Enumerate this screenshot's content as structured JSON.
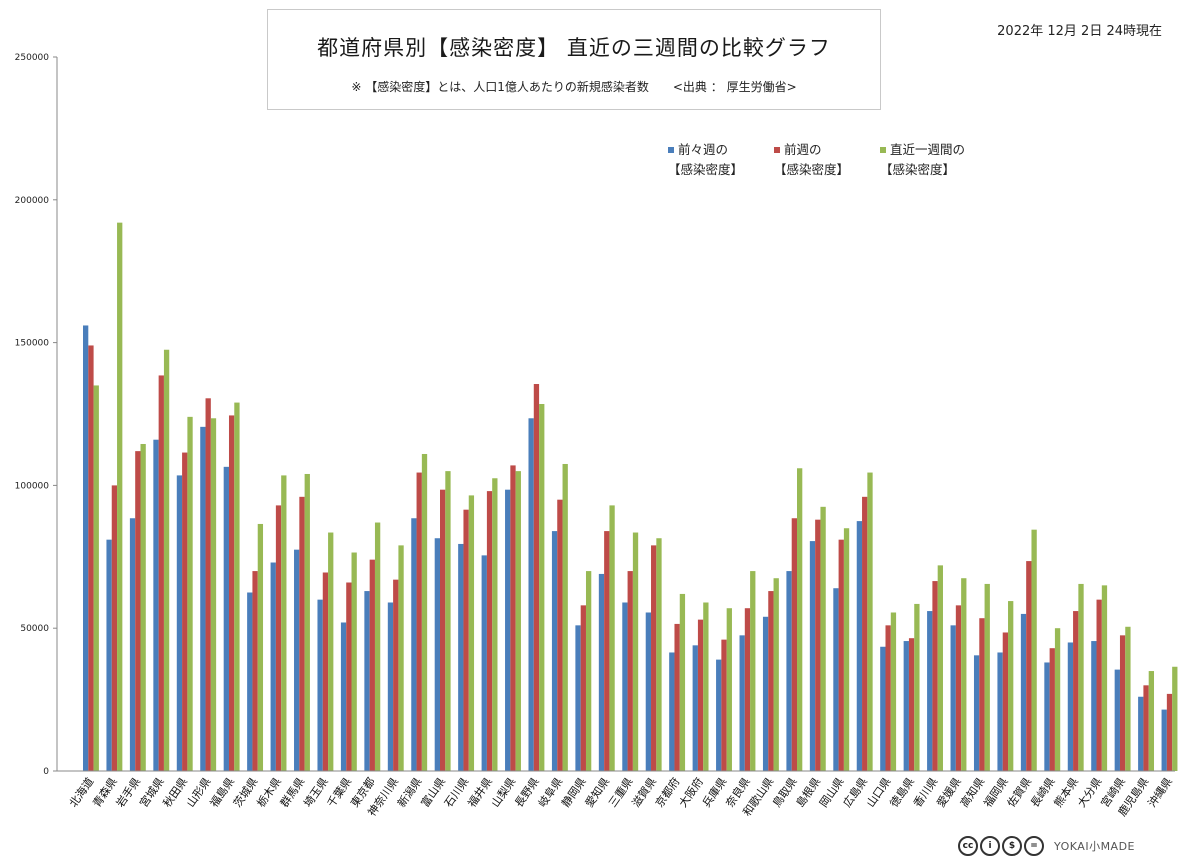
{
  "header": {
    "title": "都道府県別【感染密度】 直近の三週間の比較グラフ",
    "subtitle": "※ 【感染密度】とは、人口1億人あたりの新規感染者数　　<出典 ： 厚生労働省>",
    "timestamp": "2022年 12月 2日 24時現在"
  },
  "footer": {
    "license_icons": [
      "cc",
      "by",
      "nc",
      "nd"
    ],
    "brand": "YOKAI小MADE"
  },
  "colors": {
    "series1": "#4a7ebb",
    "series2": "#be4b48",
    "series3": "#98b954",
    "axis": "#888888"
  },
  "chart_data": {
    "type": "bar",
    "title": "都道府県別【感染密度】 直近の三週間の比較グラフ",
    "xlabel": "",
    "ylabel": "",
    "ylim": [
      0,
      250000
    ],
    "yticks": [
      "0",
      "50000",
      "100000",
      "150000",
      "200000",
      "250000"
    ],
    "grid": false,
    "legend_position": "top-right",
    "categories": [
      "北海道",
      "青森県",
      "岩手県",
      "宮城県",
      "秋田県",
      "山形県",
      "福島県",
      "茨城県",
      "栃木県",
      "群馬県",
      "埼玉県",
      "千葉県",
      "東京都",
      "神奈川県",
      "新潟県",
      "富山県",
      "石川県",
      "福井県",
      "山梨県",
      "長野県",
      "岐阜県",
      "静岡県",
      "愛知県",
      "三重県",
      "滋賀県",
      "京都府",
      "大阪府",
      "兵庫県",
      "奈良県",
      "和歌山県",
      "鳥取県",
      "島根県",
      "岡山県",
      "広島県",
      "山口県",
      "徳島県",
      "香川県",
      "愛媛県",
      "高知県",
      "福岡県",
      "佐賀県",
      "長崎県",
      "熊本県",
      "大分県",
      "宮崎県",
      "鹿児島県",
      "沖縄県"
    ],
    "series": [
      {
        "name": "前々週の\n【感染密度】",
        "values": [
          156000,
          81000,
          88500,
          116000,
          103500,
          120500,
          106500,
          62500,
          73000,
          77500,
          60000,
          52000,
          63000,
          59000,
          88500,
          81500,
          79500,
          75500,
          98500,
          123500,
          84000,
          51000,
          69000,
          59000,
          55500,
          41500,
          44000,
          39000,
          47500,
          54000,
          70000,
          80500,
          64000,
          87500,
          43500,
          45500,
          56000,
          51000,
          40500,
          41500,
          55000,
          38000,
          45000,
          45500,
          35500,
          26000,
          21500
        ]
      },
      {
        "name": "前週の\n【感染密度】",
        "values": [
          149000,
          100000,
          112000,
          138500,
          111500,
          130500,
          124500,
          70000,
          93000,
          96000,
          69500,
          66000,
          74000,
          67000,
          104500,
          98500,
          91500,
          98000,
          107000,
          135500,
          95000,
          58000,
          84000,
          70000,
          79000,
          51500,
          53000,
          46000,
          57000,
          63000,
          88500,
          88000,
          81000,
          96000,
          51000,
          46500,
          66500,
          58000,
          53500,
          48500,
          73500,
          43000,
          56000,
          60000,
          47500,
          30000,
          27000
        ]
      },
      {
        "name": "直近一週間の\n【感染密度】",
        "values": [
          135000,
          192000,
          114500,
          147500,
          124000,
          123500,
          129000,
          86500,
          103500,
          104000,
          83500,
          76500,
          87000,
          79000,
          111000,
          105000,
          96500,
          102500,
          105000,
          128500,
          107500,
          70000,
          93000,
          83500,
          81500,
          62000,
          59000,
          57000,
          70000,
          67500,
          106000,
          92500,
          85000,
          104500,
          55500,
          58500,
          72000,
          67500,
          65500,
          59500,
          84500,
          50000,
          65500,
          65000,
          50500,
          35000,
          36500
        ]
      }
    ]
  }
}
